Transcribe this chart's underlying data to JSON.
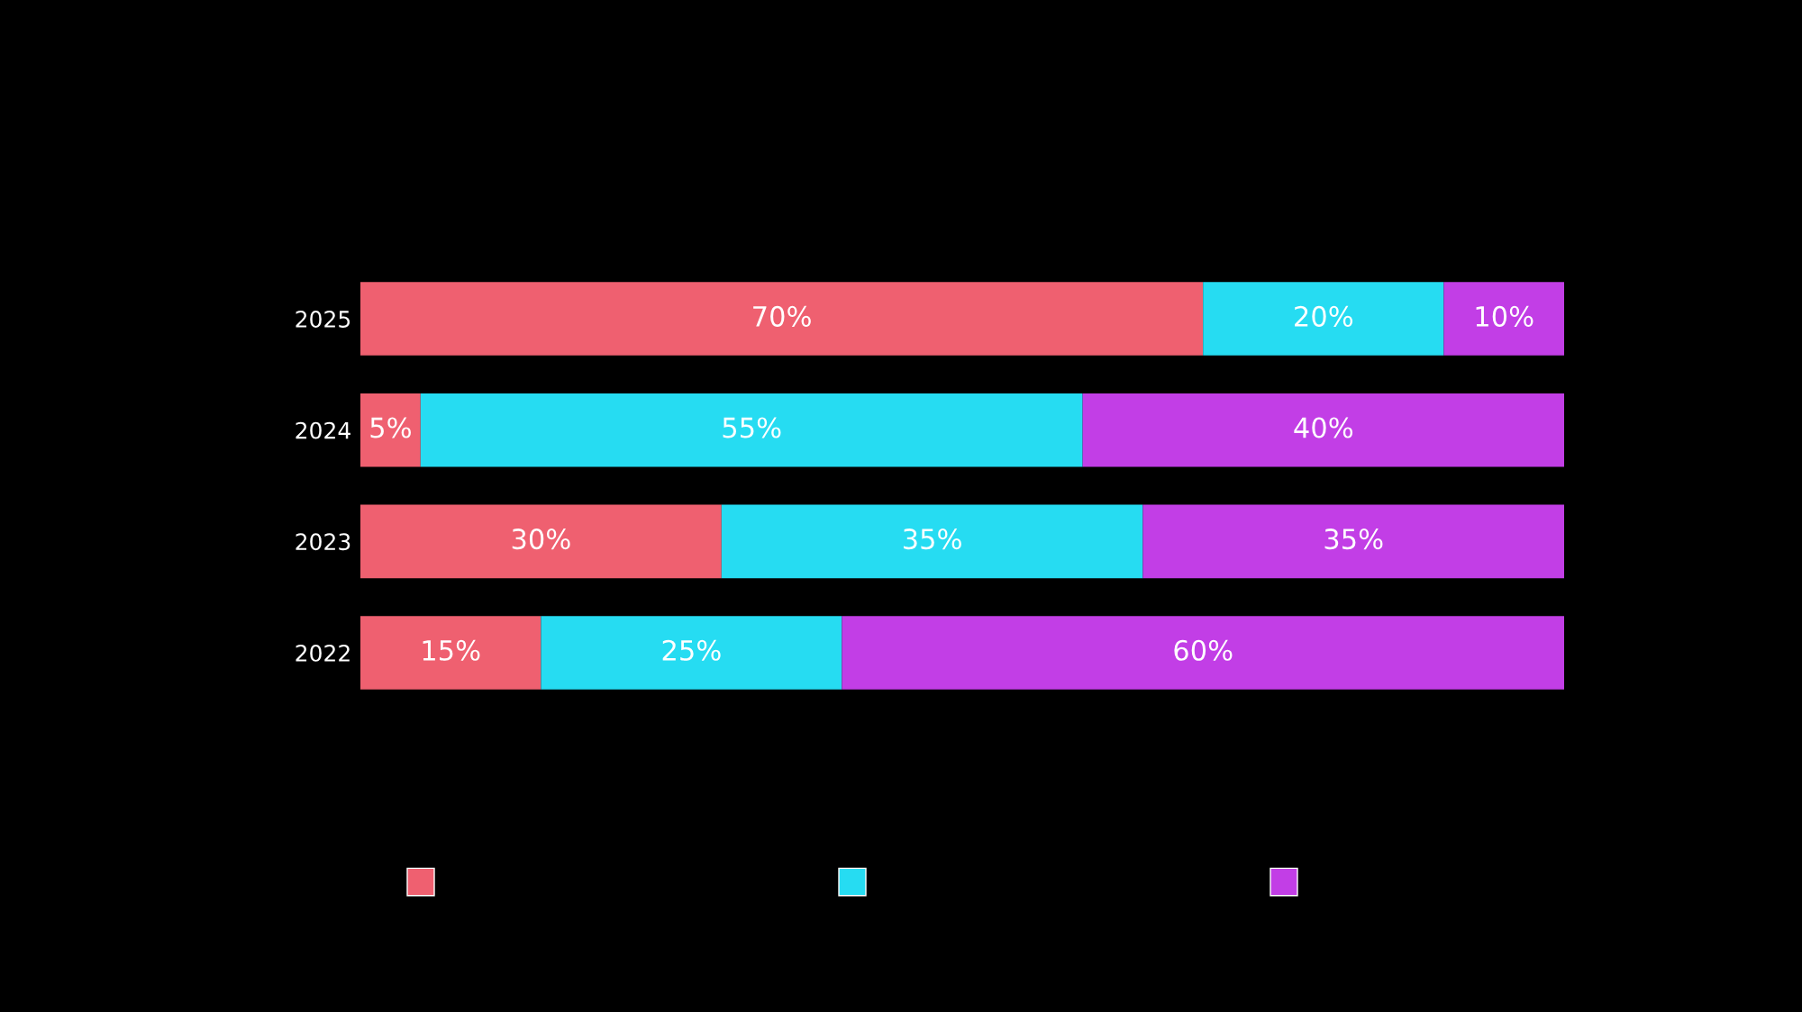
{
  "chart_data": {
    "type": "bar",
    "orientation": "horizontal",
    "stacked": true,
    "categories": [
      "2025",
      "2024",
      "2023",
      "2022"
    ],
    "series": [
      {
        "color": "#ef6070",
        "values": [
          70,
          5,
          30,
          15
        ],
        "value_labels": [
          "70%",
          "5%",
          "30%",
          "15%"
        ]
      },
      {
        "color": "#26dcf2",
        "values": [
          20,
          55,
          35,
          25
        ],
        "value_labels": [
          "20%",
          "55%",
          "35%",
          "25%"
        ]
      },
      {
        "color": "#c23ee6",
        "values": [
          10,
          40,
          35,
          60
        ],
        "value_labels": [
          "10%",
          "40%",
          "35%",
          "60%"
        ]
      }
    ],
    "xlim": [
      0,
      100
    ],
    "tick_labels": "y",
    "grid": false
  }
}
